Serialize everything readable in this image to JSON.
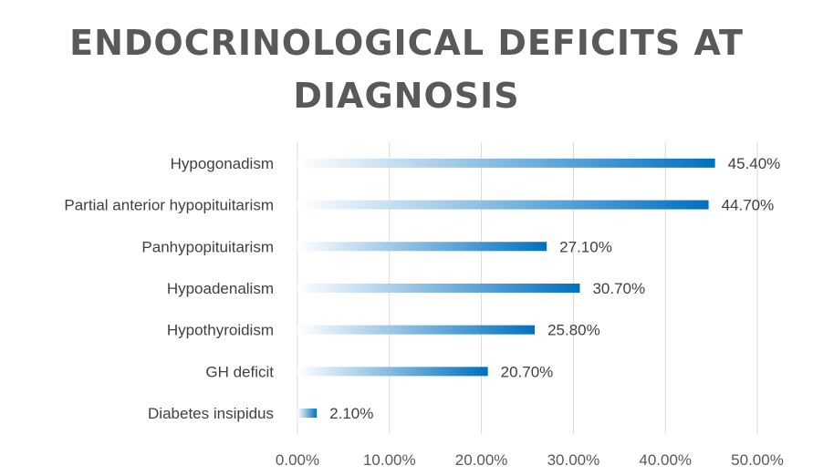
{
  "chart_data": {
    "type": "bar",
    "orientation": "horizontal",
    "title_lines": [
      "ENDOCRINOLOGICAL DEFICITS AT",
      "DIAGNOSIS"
    ],
    "categories": [
      "Hypogonadism",
      "Partial anterior hypopituitarism",
      "Panhypopituitarism",
      "Hypoadenalism",
      "Hypothyroidism",
      "GH deficit",
      "Diabetes insipidus"
    ],
    "values": [
      45.4,
      44.7,
      27.1,
      30.7,
      25.8,
      20.7,
      2.1
    ],
    "value_labels": [
      "45.40%",
      "44.70%",
      "27.10%",
      "30.70%",
      "25.80%",
      "20.70%",
      "2.10%"
    ],
    "x_ticks": [
      0,
      10,
      20,
      30,
      40,
      50
    ],
    "x_tick_labels": [
      "0.00%",
      "10.00%",
      "20.00%",
      "30.00%",
      "40.00%",
      "50.00%"
    ],
    "xlim": [
      0,
      50
    ],
    "grid": "vertical",
    "colors": {
      "bar_start": "#ffffff",
      "bar_end": "#0070c0",
      "grid": "#d9d9d9",
      "text": "#404040"
    }
  }
}
